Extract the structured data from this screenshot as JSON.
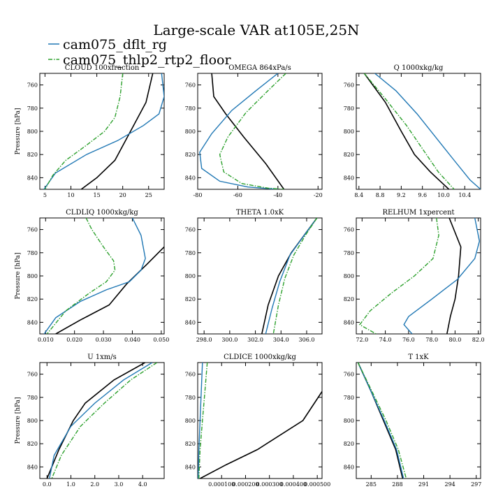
{
  "title": "Large-scale VAR at105E,25N",
  "legend": [
    {
      "label": "cam075_dflt_rg",
      "color": "#1f77b4",
      "dash": "solid"
    },
    {
      "label": "cam075_thlp2_rtp2_floor",
      "color": "#2ca02c",
      "dash": "dashdot"
    }
  ],
  "colors": {
    "black": "#000000",
    "blue": "#1f77b4",
    "green": "#2ca02c"
  },
  "chart_data": [
    {
      "type": "line",
      "title": "CLOUD  100xfraction",
      "ylabel": "Pressure [hPa]",
      "xlim": [
        4,
        28
      ],
      "ylim": [
        850,
        750
      ],
      "xticks": [
        5,
        10,
        15,
        20,
        25
      ],
      "xtick_labels": [
        "5",
        "10",
        "15",
        "20",
        "25"
      ],
      "yticks": [
        760,
        780,
        800,
        820,
        840
      ],
      "series": [
        {
          "color": "black",
          "dash": "solid",
          "x": [
            25.8,
            24.5,
            21.5,
            18.5,
            15.0,
            12.0
          ],
          "y": [
            750,
            775,
            800,
            825,
            840,
            850
          ]
        },
        {
          "color": "blue",
          "dash": "solid",
          "x": [
            27.5,
            28.0,
            27.0,
            24.0,
            19.0,
            13.0,
            7.0,
            4.8
          ],
          "y": [
            750,
            770,
            785,
            795,
            808,
            820,
            836,
            850
          ]
        },
        {
          "color": "green",
          "dash": "dashdot",
          "x": [
            20.0,
            19.5,
            18.5,
            16.5,
            13.0,
            9.0,
            6.5,
            5.0
          ],
          "y": [
            750,
            770,
            788,
            800,
            812,
            825,
            838,
            850
          ]
        }
      ]
    },
    {
      "type": "line",
      "title": "OMEGA  864xPa/s",
      "ylabel": "",
      "xlim": [
        -80,
        -18
      ],
      "ylim": [
        850,
        750
      ],
      "xticks": [
        -80,
        -60,
        -40,
        -20
      ],
      "xtick_labels": [
        "-80",
        "-60",
        "-40",
        "-20"
      ],
      "yticks": [
        760,
        780,
        800,
        820,
        840
      ],
      "series": [
        {
          "color": "black",
          "dash": "solid",
          "x": [
            -73,
            -72,
            -66,
            -57,
            -46,
            -37
          ],
          "y": [
            750,
            770,
            785,
            805,
            828,
            850
          ]
        },
        {
          "color": "blue",
          "dash": "solid",
          "x": [
            -40,
            -51,
            -63,
            -73,
            -79,
            -78,
            -69,
            -55,
            -40
          ],
          "y": [
            750,
            765,
            782,
            802,
            818,
            832,
            843,
            848,
            850
          ]
        },
        {
          "color": "green",
          "dash": "dashdot",
          "x": [
            -36,
            -45,
            -56,
            -65,
            -69,
            -67,
            -58,
            -45,
            -37
          ],
          "y": [
            750,
            765,
            784,
            805,
            820,
            835,
            845,
            849,
            850
          ]
        }
      ]
    },
    {
      "type": "line",
      "title": "Q  1000xkg/kg",
      "ylabel": "",
      "xlim": [
        8.35,
        10.7
      ],
      "ylim": [
        850,
        750
      ],
      "xticks": [
        8.4,
        8.8,
        9.2,
        9.6,
        10.0,
        10.4
      ],
      "xtick_labels": [
        "8.4",
        "8.8",
        "9.2",
        "9.6",
        "10.0",
        "10.4"
      ],
      "yticks": [
        760,
        780,
        800,
        820,
        840
      ],
      "series": [
        {
          "color": "black",
          "dash": "solid",
          "x": [
            8.5,
            8.9,
            9.2,
            9.45,
            9.75,
            10.1
          ],
          "y": [
            750,
            775,
            800,
            820,
            835,
            850
          ]
        },
        {
          "color": "blue",
          "dash": "solid",
          "x": [
            8.7,
            9.1,
            9.5,
            9.85,
            10.2,
            10.5,
            10.7
          ],
          "y": [
            750,
            765,
            785,
            805,
            825,
            842,
            850
          ]
        },
        {
          "color": "green",
          "dash": "dashdot",
          "x": [
            8.5,
            8.9,
            9.3,
            9.6,
            9.9,
            10.2
          ],
          "y": [
            750,
            772,
            795,
            815,
            835,
            850
          ]
        }
      ]
    },
    {
      "type": "line",
      "title": "CLDLIQ  1000xkg/kg",
      "ylabel": "Pressure [hPa]",
      "xlim": [
        0.008,
        0.051
      ],
      "ylim": [
        850,
        750
      ],
      "xticks": [
        0.01,
        0.02,
        0.03,
        0.04,
        0.05
      ],
      "xtick_labels": [
        "0.010",
        "0.020",
        "0.030",
        "0.040",
        "0.050"
      ],
      "yticks": [
        760,
        780,
        800,
        820,
        840
      ],
      "series": [
        {
          "color": "black",
          "dash": "solid",
          "x": [
            0.051,
            0.045,
            0.038,
            0.032,
            0.022,
            0.0135
          ],
          "y": [
            775,
            790,
            807,
            825,
            838,
            850
          ]
        },
        {
          "color": "blue",
          "dash": "solid",
          "x": [
            0.04,
            0.043,
            0.0445,
            0.043,
            0.039,
            0.031,
            0.022,
            0.0135,
            0.0095
          ],
          "y": [
            750,
            765,
            785,
            795,
            805,
            812,
            822,
            836,
            850
          ]
        },
        {
          "color": "green",
          "dash": "dashdot",
          "x": [
            0.024,
            0.026,
            0.03,
            0.0335,
            0.034,
            0.031,
            0.025,
            0.017,
            0.0105
          ],
          "y": [
            750,
            760,
            775,
            787,
            795,
            805,
            815,
            830,
            850
          ]
        }
      ]
    },
    {
      "type": "line",
      "title": "THETA  1.0xK",
      "ylabel": "",
      "xlim": [
        297.5,
        307.2
      ],
      "ylim": [
        850,
        750
      ],
      "xticks": [
        298,
        300,
        302,
        304,
        306
      ],
      "xtick_labels": [
        "298.0",
        "300.0",
        "302.0",
        "304.0",
        "306.0"
      ],
      "yticks": [
        760,
        780,
        800,
        820,
        840
      ],
      "series": [
        {
          "color": "black",
          "dash": "solid",
          "x": [
            306.8,
            305.8,
            304.8,
            303.8,
            303.0,
            302.5
          ],
          "y": [
            750,
            765,
            780,
            800,
            825,
            850
          ]
        },
        {
          "color": "blue",
          "dash": "solid",
          "x": [
            306.8,
            305.8,
            304.7,
            303.9,
            303.3,
            302.8
          ],
          "y": [
            750,
            765,
            782,
            805,
            828,
            850
          ]
        },
        {
          "color": "green",
          "dash": "dashdot",
          "x": [
            306.8,
            305.9,
            305.0,
            304.3,
            303.8,
            303.4
          ],
          "y": [
            750,
            765,
            782,
            802,
            825,
            850
          ]
        }
      ]
    },
    {
      "type": "line",
      "title": "RELHUM  1xpercent",
      "ylabel": "",
      "xlim": [
        71.5,
        82.2
      ],
      "ylim": [
        850,
        750
      ],
      "xticks": [
        72,
        74,
        76,
        78,
        80,
        82
      ],
      "xtick_labels": [
        "72.0",
        "74.0",
        "76.0",
        "78.0",
        "80.0",
        "82.0"
      ],
      "yticks": [
        760,
        780,
        800,
        820,
        840
      ],
      "series": [
        {
          "color": "black",
          "dash": "solid",
          "x": [
            79.5,
            80.5,
            80.3,
            80.0,
            79.6,
            79.3
          ],
          "y": [
            750,
            775,
            800,
            820,
            835,
            850
          ]
        },
        {
          "color": "blue",
          "dash": "solid",
          "x": [
            81.7,
            82.1,
            81.7,
            80.2,
            78.0,
            76.0,
            75.6,
            76.3
          ],
          "y": [
            750,
            770,
            785,
            803,
            820,
            835,
            842,
            850
          ]
        },
        {
          "color": "green",
          "dash": "dashdot",
          "x": [
            78.4,
            78.6,
            78.1,
            76.5,
            74.5,
            72.7,
            71.8,
            73.2
          ],
          "y": [
            750,
            765,
            785,
            800,
            815,
            830,
            842,
            850
          ]
        }
      ]
    },
    {
      "type": "line",
      "title": "U  1xm/s",
      "ylabel": "Pressure [hPa]",
      "xlim": [
        -0.3,
        4.9
      ],
      "ylim": [
        850,
        750
      ],
      "xticks": [
        0,
        1,
        2,
        3,
        4
      ],
      "xtick_labels": [
        "0.0",
        "1.0",
        "2.0",
        "3.0",
        "4.0"
      ],
      "yticks": [
        760,
        780,
        800,
        820,
        840
      ],
      "series": [
        {
          "color": "black",
          "dash": "solid",
          "x": [
            4.1,
            2.8,
            1.6,
            1.1,
            0.5,
            0.0
          ],
          "y": [
            750,
            765,
            785,
            800,
            825,
            850
          ]
        },
        {
          "color": "blue",
          "dash": "solid",
          "x": [
            4.4,
            3.2,
            2.0,
            1.0,
            0.3,
            0.1
          ],
          "y": [
            750,
            765,
            785,
            805,
            830,
            850
          ]
        },
        {
          "color": "green",
          "dash": "dashdot",
          "x": [
            4.6,
            3.5,
            2.4,
            1.4,
            0.6,
            0.2
          ],
          "y": [
            750,
            765,
            785,
            805,
            830,
            850
          ]
        }
      ]
    },
    {
      "type": "line",
      "title": "CLDICE  1000xkg/kg",
      "ylabel": "",
      "xlim": [
        0,
        0.00052
      ],
      "ylim": [
        850,
        750
      ],
      "xticks": [
        0.0001,
        0.0002,
        0.0003,
        0.0004,
        0.0005
      ],
      "xtick_labels": [
        "0.000100",
        "0.000200",
        "0.000300",
        "0.000400",
        "0.000500"
      ],
      "yticks": [
        760,
        780,
        800,
        820,
        840
      ],
      "series": [
        {
          "color": "black",
          "dash": "solid",
          "x": [
            0.00052,
            0.00044,
            0.00025,
            0.00012,
            1e-05
          ],
          "y": [
            775,
            800,
            825,
            838,
            850
          ]
        },
        {
          "color": "blue",
          "dash": "solid",
          "x": [
            2e-05,
            1.5e-05,
            1e-05,
            5e-06,
            2e-06
          ],
          "y": [
            750,
            775,
            800,
            825,
            850
          ]
        },
        {
          "color": "green",
          "dash": "dashdot",
          "x": [
            4e-05,
            3e-05,
            2e-05,
            1e-05,
            5e-06
          ],
          "y": [
            750,
            775,
            800,
            825,
            850
          ]
        }
      ]
    },
    {
      "type": "line",
      "title": "T  1xK",
      "ylabel": "",
      "xlim": [
        283.3,
        297.5
      ],
      "ylim": [
        850,
        750
      ],
      "xticks": [
        285,
        288,
        291,
        294,
        297
      ],
      "xtick_labels": [
        "285",
        "288",
        "291",
        "294",
        "297"
      ],
      "yticks": [
        760,
        780,
        800,
        820,
        840
      ],
      "series": [
        {
          "color": "black",
          "dash": "solid",
          "x": [
            283.5,
            285.0,
            286.4,
            287.8,
            288.6
          ],
          "y": [
            750,
            775,
            800,
            825,
            850
          ]
        },
        {
          "color": "blue",
          "dash": "solid",
          "x": [
            283.5,
            285.0,
            286.5,
            287.9,
            288.7
          ],
          "y": [
            750,
            775,
            800,
            825,
            850
          ]
        },
        {
          "color": "green",
          "dash": "dashdot",
          "x": [
            283.5,
            285.1,
            286.7,
            288.1,
            289.0
          ],
          "y": [
            750,
            775,
            800,
            825,
            850
          ]
        }
      ]
    }
  ]
}
